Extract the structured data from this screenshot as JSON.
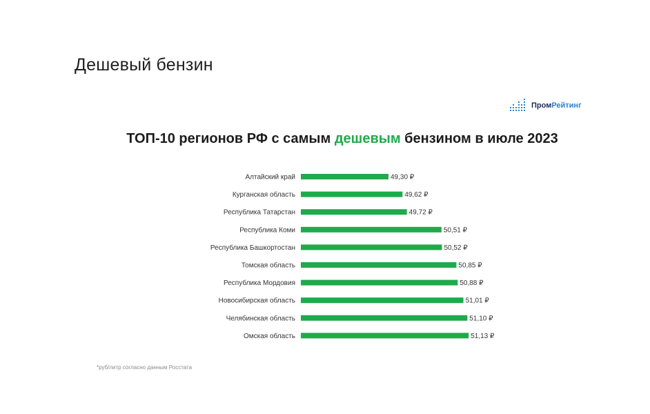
{
  "slide": {
    "title": "Дешевый бензин"
  },
  "logo": {
    "icon": "bar-chart-icon",
    "part1": "Пром",
    "part2": "Рейтинг",
    "colors": {
      "icon": "#2a7fd1",
      "part1": "#1e2a5a",
      "part2": "#2a7fd1"
    }
  },
  "chart_data": {
    "type": "bar",
    "orientation": "horizontal",
    "title": {
      "before": "ТОП-10 регионов РФ с самым ",
      "highlight": "дешевым",
      "after": " бензином в июле 2023"
    },
    "categories": [
      "Алтайский край",
      "Курганская область",
      "Республика Татарстан",
      "Республика Коми",
      "Республика Башкортостан",
      "Томская область",
      "Республика Мордовия",
      "Новосибирская область",
      "Челябинская область",
      "Омская область"
    ],
    "values": [
      49.3,
      49.62,
      49.72,
      50.51,
      50.52,
      50.85,
      50.88,
      51.01,
      51.1,
      51.13
    ],
    "value_labels": [
      "49,30 ₽",
      "49,62 ₽",
      "49,72 ₽",
      "50,51 ₽",
      "50,52 ₽",
      "50,85 ₽",
      "50,88 ₽",
      "51,01 ₽",
      "51,10 ₽",
      "51,13 ₽"
    ],
    "xlim": [
      47.3,
      51.3
    ],
    "bar_color": "#1faa4b",
    "highlight_color": "#1faa4b",
    "grid": false,
    "legend": "none",
    "footnote": "*руб/литр согласно данным Росстата"
  }
}
